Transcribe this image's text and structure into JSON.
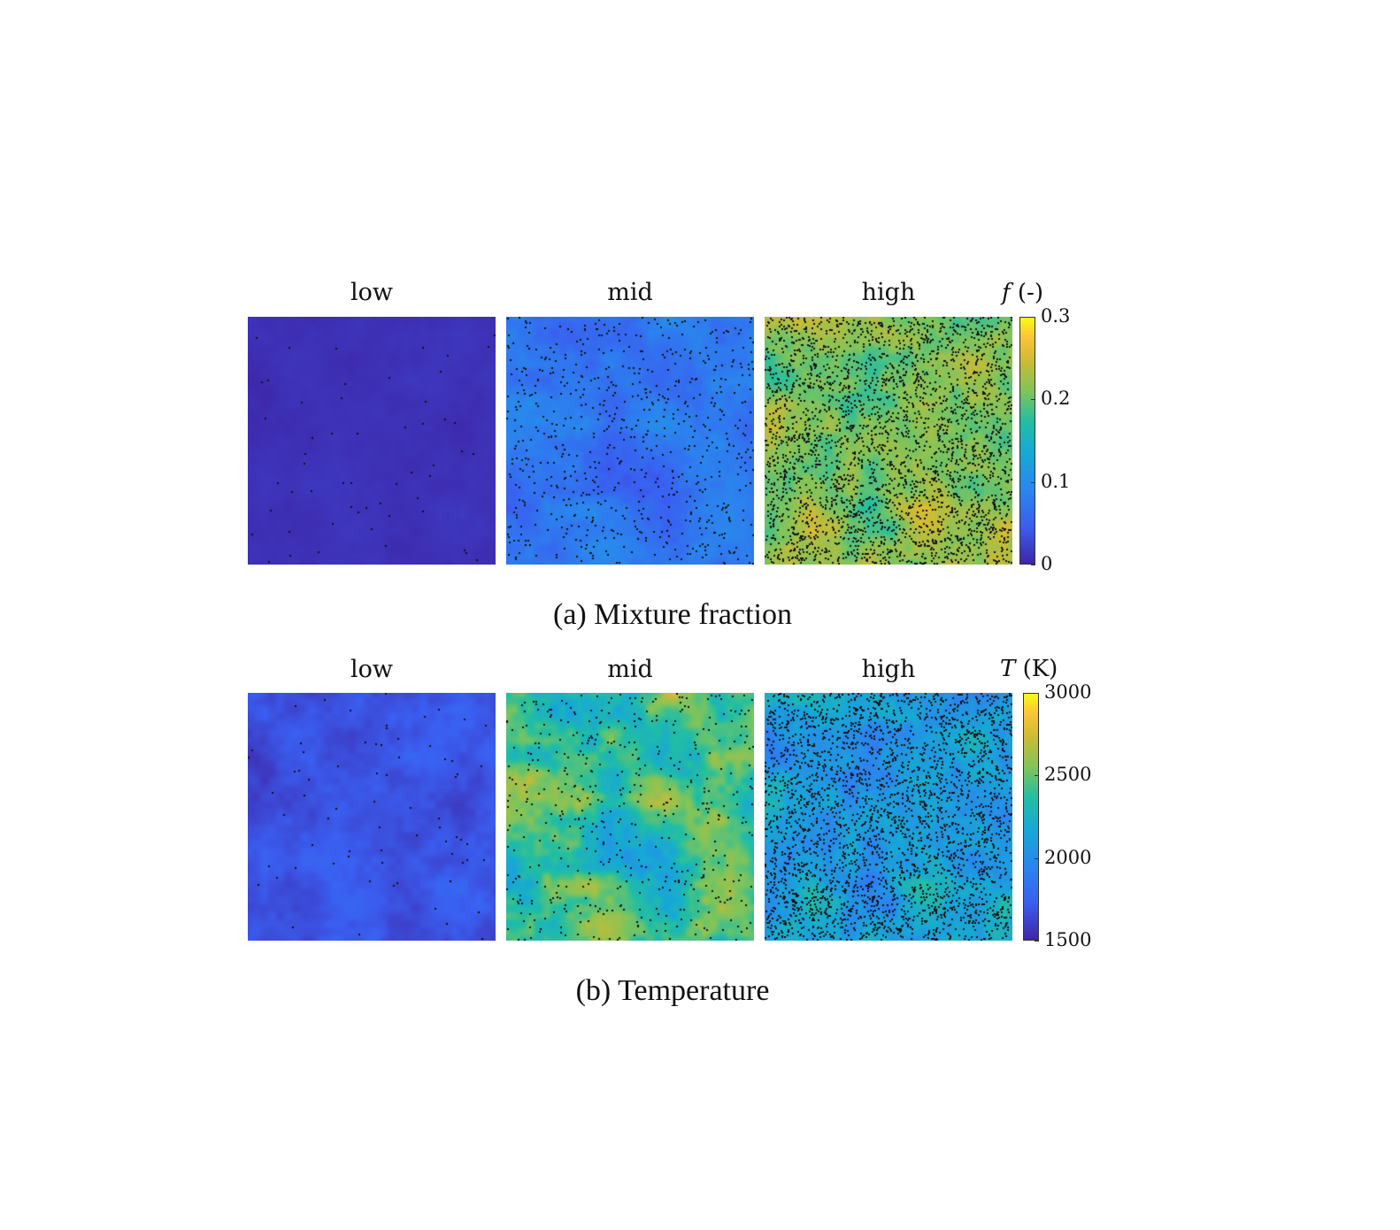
{
  "figures": [
    {
      "id": "a",
      "caption": "(a) Mixture fraction",
      "colorbar": {
        "symbol": "f",
        "unit": "(-)",
        "min": 0,
        "max": 0.3,
        "ticks": [
          "0",
          "0.1",
          "0.2",
          "0.3"
        ],
        "tick_values": [
          0,
          0.1,
          0.2,
          0.3
        ]
      },
      "panels": [
        {
          "title": "low",
          "mean_level": 0.03,
          "variation": 0.03,
          "dot_count": 55
        },
        {
          "title": "mid",
          "mean_level": 0.24,
          "variation": 0.14,
          "dot_count": 700
        },
        {
          "title": "high",
          "mean_level": 0.72,
          "variation": 0.2,
          "dot_count": 3000
        }
      ]
    },
    {
      "id": "b",
      "caption": "(b) Temperature",
      "colorbar": {
        "symbol": "T",
        "unit": "(K)",
        "min": 1500,
        "max": 3000,
        "ticks": [
          "1500",
          "2000",
          "2500",
          "3000"
        ],
        "tick_values": [
          1500,
          2000,
          2500,
          3000
        ]
      },
      "panels": [
        {
          "title": "low",
          "mean_level": 0.12,
          "variation": 0.1,
          "dot_count": 70
        },
        {
          "title": "mid",
          "mean_level": 0.6,
          "variation": 0.3,
          "dot_count": 500
        },
        {
          "title": "high",
          "mean_level": 0.42,
          "variation": 0.24,
          "dot_count": 3000
        }
      ]
    }
  ],
  "chart_data": [
    {
      "type": "heatmap",
      "title": "(a) Mixture fraction",
      "panels": [
        "low",
        "mid",
        "high"
      ],
      "colorbar_label": "f (-)",
      "clim": [
        0,
        0.3
      ],
      "ticks": [
        0,
        0.1,
        0.2,
        0.3
      ]
    },
    {
      "type": "heatmap",
      "title": "(b) Temperature",
      "panels": [
        "low",
        "mid",
        "high"
      ],
      "colorbar_label": "T (K)",
      "clim": [
        1500,
        3000
      ],
      "ticks": [
        1500,
        2000,
        2500,
        3000
      ]
    }
  ]
}
